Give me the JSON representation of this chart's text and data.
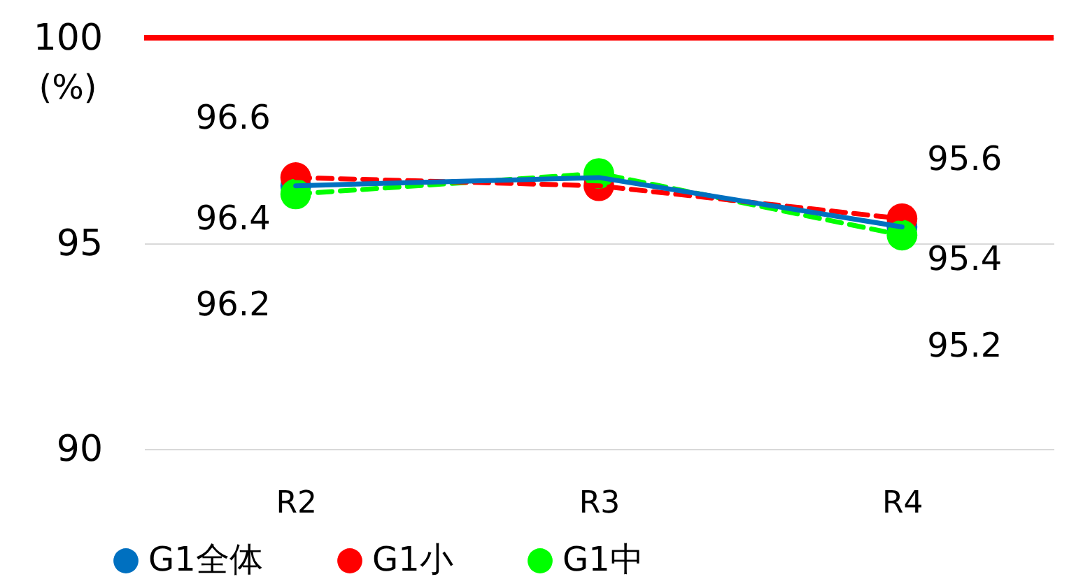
{
  "chart_data": {
    "type": "line",
    "ylabel": "(%)",
    "categories": [
      "R2",
      "R3",
      "R4"
    ],
    "ylim": [
      90,
      100
    ],
    "yticks": [
      90,
      95,
      100
    ],
    "grid": "y",
    "legend": "bottom",
    "marker": "circle",
    "ref_lines": [
      {
        "axis": "y",
        "value": 100,
        "color": "#ff0000"
      }
    ],
    "series": [
      {
        "name": "G1全体",
        "color": "#0070c0",
        "line_style": "solid",
        "values": [
          96.4,
          96.6,
          95.4
        ],
        "value_labels": [
          "96.4",
          null,
          "95.4"
        ]
      },
      {
        "name": "G1小",
        "color": "#ff0000",
        "line_style": "dashed",
        "values": [
          96.6,
          96.4,
          95.6
        ],
        "value_labels": [
          "96.6",
          null,
          "95.6"
        ]
      },
      {
        "name": "G1中",
        "color": "#00ff00",
        "line_style": "dashed",
        "values": [
          96.2,
          96.7,
          95.2
        ],
        "value_labels": [
          "96.2",
          null,
          "95.2"
        ]
      }
    ]
  }
}
